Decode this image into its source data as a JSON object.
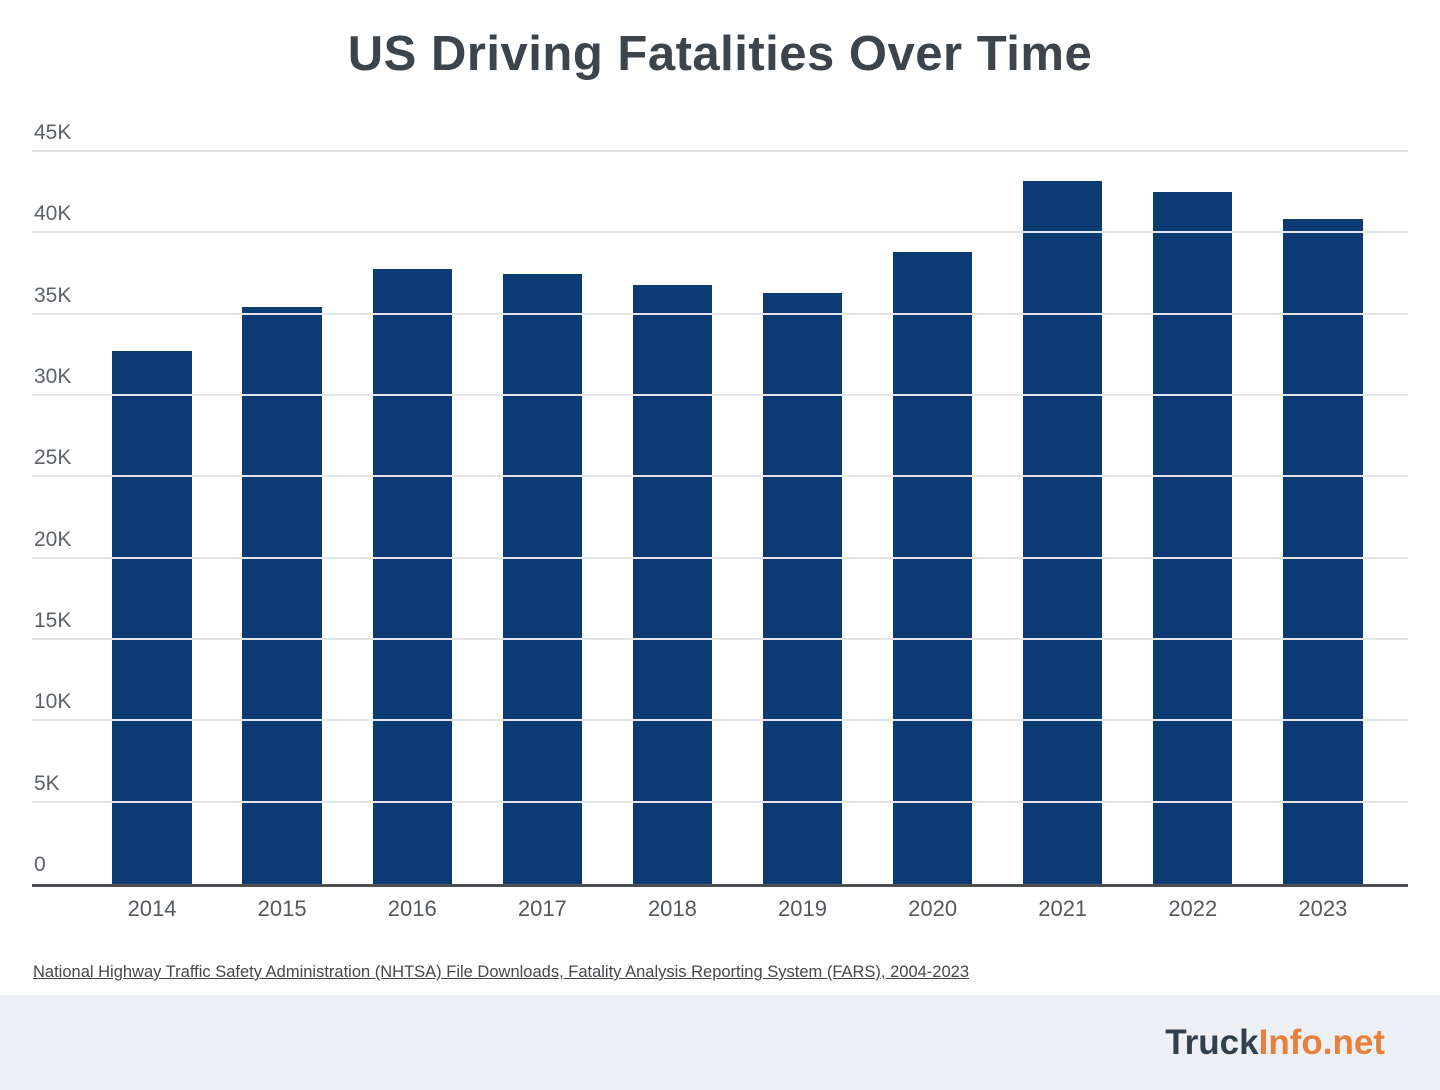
{
  "chart": {
    "title": "US Driving Fatalities Over Time"
  },
  "chart_data": {
    "type": "bar",
    "title": "US Driving Fatalities Over Time",
    "categories": [
      "2014",
      "2015",
      "2016",
      "2017",
      "2018",
      "2019",
      "2020",
      "2021",
      "2022",
      "2023"
    ],
    "values": [
      32744,
      35484,
      37806,
      37473,
      36835,
      36355,
      38824,
      43230,
      42514,
      40901
    ],
    "xlabel": "",
    "ylabel": "",
    "ylim": [
      0,
      45000
    ],
    "y_ticks": [
      {
        "label": "0",
        "value": 0
      },
      {
        "label": "5K",
        "value": 5000
      },
      {
        "label": "10K",
        "value": 10000
      },
      {
        "label": "15K",
        "value": 15000
      },
      {
        "label": "20K",
        "value": 20000
      },
      {
        "label": "25K",
        "value": 25000
      },
      {
        "label": "30K",
        "value": 30000
      },
      {
        "label": "35K",
        "value": 35000
      },
      {
        "label": "40K",
        "value": 40000
      },
      {
        "label": "45K",
        "value": 45000
      }
    ],
    "grid": true,
    "legend": false,
    "bar_color": "#0c3a72"
  },
  "source": {
    "text": "National Highway Traffic Safety Administration (NHTSA) File Downloads, Fatality Analysis Reporting System (FARS), 2004-2023"
  },
  "footer": {
    "logo_part1": "Truck",
    "logo_part2": "Info.net"
  },
  "colors": {
    "bar": "#0c3a72",
    "title": "#3d444b",
    "y_label": "#5c6268",
    "x_label": "#54595e",
    "gridline": "#e4e5e7",
    "axis_line": "#4b4f54",
    "source_text": "#45474a",
    "footer_bg": "#edf0f4",
    "logo_dark": "#31404e",
    "logo_orange": "#e8803c"
  }
}
